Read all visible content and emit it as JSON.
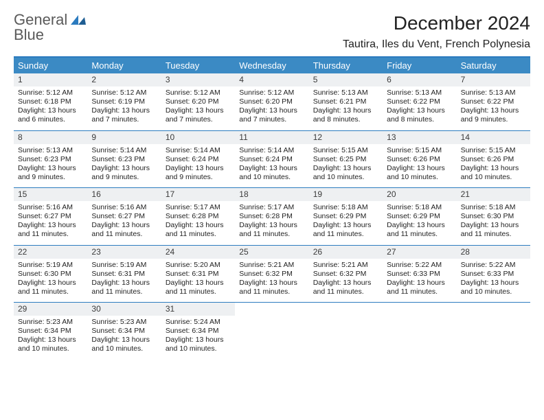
{
  "brand": {
    "top": "General",
    "bottom": "Blue"
  },
  "title": "December 2024",
  "location": "Tautira, Iles du Vent, French Polynesia",
  "colors": {
    "accent": "#3b8ac4",
    "rule": "#2b7bbf",
    "daynum_bg": "#eef0f2",
    "text": "#1a1a1a",
    "bg": "#ffffff"
  },
  "layout": {
    "type": "calendar",
    "columns": 7,
    "rows": 5,
    "cell_font_size_pt": 8,
    "header_font_size_pt": 10
  },
  "day_names": [
    "Sunday",
    "Monday",
    "Tuesday",
    "Wednesday",
    "Thursday",
    "Friday",
    "Saturday"
  ],
  "weeks": [
    [
      {
        "n": "1",
        "sr": "5:12 AM",
        "ss": "6:18 PM",
        "dl": "13 hours and 6 minutes."
      },
      {
        "n": "2",
        "sr": "5:12 AM",
        "ss": "6:19 PM",
        "dl": "13 hours and 7 minutes."
      },
      {
        "n": "3",
        "sr": "5:12 AM",
        "ss": "6:20 PM",
        "dl": "13 hours and 7 minutes."
      },
      {
        "n": "4",
        "sr": "5:12 AM",
        "ss": "6:20 PM",
        "dl": "13 hours and 7 minutes."
      },
      {
        "n": "5",
        "sr": "5:13 AM",
        "ss": "6:21 PM",
        "dl": "13 hours and 8 minutes."
      },
      {
        "n": "6",
        "sr": "5:13 AM",
        "ss": "6:22 PM",
        "dl": "13 hours and 8 minutes."
      },
      {
        "n": "7",
        "sr": "5:13 AM",
        "ss": "6:22 PM",
        "dl": "13 hours and 9 minutes."
      }
    ],
    [
      {
        "n": "8",
        "sr": "5:13 AM",
        "ss": "6:23 PM",
        "dl": "13 hours and 9 minutes."
      },
      {
        "n": "9",
        "sr": "5:14 AM",
        "ss": "6:23 PM",
        "dl": "13 hours and 9 minutes."
      },
      {
        "n": "10",
        "sr": "5:14 AM",
        "ss": "6:24 PM",
        "dl": "13 hours and 9 minutes."
      },
      {
        "n": "11",
        "sr": "5:14 AM",
        "ss": "6:24 PM",
        "dl": "13 hours and 10 minutes."
      },
      {
        "n": "12",
        "sr": "5:15 AM",
        "ss": "6:25 PM",
        "dl": "13 hours and 10 minutes."
      },
      {
        "n": "13",
        "sr": "5:15 AM",
        "ss": "6:26 PM",
        "dl": "13 hours and 10 minutes."
      },
      {
        "n": "14",
        "sr": "5:15 AM",
        "ss": "6:26 PM",
        "dl": "13 hours and 10 minutes."
      }
    ],
    [
      {
        "n": "15",
        "sr": "5:16 AM",
        "ss": "6:27 PM",
        "dl": "13 hours and 11 minutes."
      },
      {
        "n": "16",
        "sr": "5:16 AM",
        "ss": "6:27 PM",
        "dl": "13 hours and 11 minutes."
      },
      {
        "n": "17",
        "sr": "5:17 AM",
        "ss": "6:28 PM",
        "dl": "13 hours and 11 minutes."
      },
      {
        "n": "18",
        "sr": "5:17 AM",
        "ss": "6:28 PM",
        "dl": "13 hours and 11 minutes."
      },
      {
        "n": "19",
        "sr": "5:18 AM",
        "ss": "6:29 PM",
        "dl": "13 hours and 11 minutes."
      },
      {
        "n": "20",
        "sr": "5:18 AM",
        "ss": "6:29 PM",
        "dl": "13 hours and 11 minutes."
      },
      {
        "n": "21",
        "sr": "5:18 AM",
        "ss": "6:30 PM",
        "dl": "13 hours and 11 minutes."
      }
    ],
    [
      {
        "n": "22",
        "sr": "5:19 AM",
        "ss": "6:30 PM",
        "dl": "13 hours and 11 minutes."
      },
      {
        "n": "23",
        "sr": "5:19 AM",
        "ss": "6:31 PM",
        "dl": "13 hours and 11 minutes."
      },
      {
        "n": "24",
        "sr": "5:20 AM",
        "ss": "6:31 PM",
        "dl": "13 hours and 11 minutes."
      },
      {
        "n": "25",
        "sr": "5:21 AM",
        "ss": "6:32 PM",
        "dl": "13 hours and 11 minutes."
      },
      {
        "n": "26",
        "sr": "5:21 AM",
        "ss": "6:32 PM",
        "dl": "13 hours and 11 minutes."
      },
      {
        "n": "27",
        "sr": "5:22 AM",
        "ss": "6:33 PM",
        "dl": "13 hours and 11 minutes."
      },
      {
        "n": "28",
        "sr": "5:22 AM",
        "ss": "6:33 PM",
        "dl": "13 hours and 10 minutes."
      }
    ],
    [
      {
        "n": "29",
        "sr": "5:23 AM",
        "ss": "6:34 PM",
        "dl": "13 hours and 10 minutes."
      },
      {
        "n": "30",
        "sr": "5:23 AM",
        "ss": "6:34 PM",
        "dl": "13 hours and 10 minutes."
      },
      {
        "n": "31",
        "sr": "5:24 AM",
        "ss": "6:34 PM",
        "dl": "13 hours and 10 minutes."
      },
      null,
      null,
      null,
      null
    ]
  ],
  "labels": {
    "sunrise": "Sunrise: ",
    "sunset": "Sunset: ",
    "daylight": "Daylight: "
  }
}
